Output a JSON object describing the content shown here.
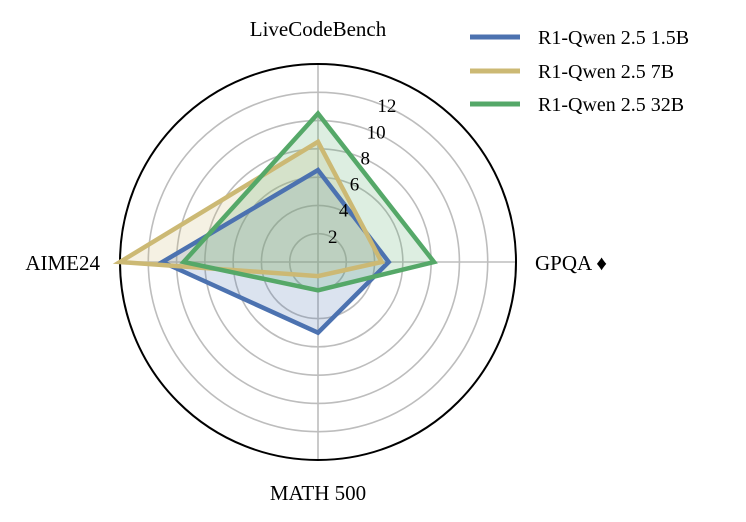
{
  "chart_data": {
    "type": "radar",
    "axes": [
      "LiveCodeBench",
      "GPQA ♦",
      "MATH 500",
      "AIME24"
    ],
    "r_ticks": [
      2,
      4,
      6,
      8,
      10,
      12
    ],
    "r_max": 14,
    "grid": true,
    "legend_position": "top-right",
    "series": [
      {
        "name": "R1-Qwen 2.5 1.5B",
        "color": "#4c72b0",
        "values": [
          6.5,
          5.0,
          5.0,
          11.0
        ]
      },
      {
        "name": "R1-Qwen 2.5 7B",
        "color": "#ccb974",
        "values": [
          8.5,
          4.5,
          1.0,
          14.0
        ]
      },
      {
        "name": "R1-Qwen 2.5 32B",
        "color": "#55a868",
        "values": [
          10.5,
          8.2,
          2.0,
          9.5
        ]
      }
    ]
  }
}
